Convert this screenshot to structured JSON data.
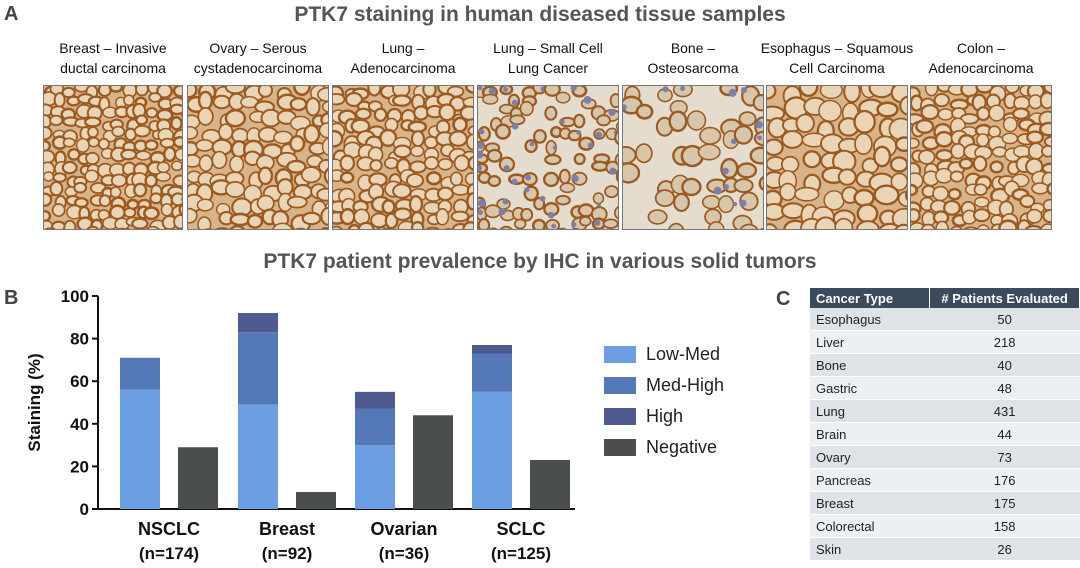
{
  "panel_a": {
    "letter": "A",
    "title": "PTK7 staining in human diseased tissue samples",
    "samples": [
      {
        "line1": "Breast – Invasive",
        "line2": "ductal carcinoma"
      },
      {
        "line1": "Ovary – Serous",
        "line2": "cystadenocarcinoma"
      },
      {
        "line1": "Lung –",
        "line2": "Adenocarcinoma"
      },
      {
        "line1": "Lung – Small Cell",
        "line2": "Lung Cancer"
      },
      {
        "line1": "Bone –",
        "line2": "Osteosarcoma"
      },
      {
        "line1": "Esophagus – Squamous",
        "line2": "Cell Carcinoma"
      },
      {
        "line1": "Colon –",
        "line2": "Adenocarcinoma"
      }
    ]
  },
  "panel_b": {
    "letter": "B",
    "title": "PTK7 patient prevalence by IHC in various solid tumors"
  },
  "panel_c": {
    "letter": "C",
    "headers": [
      "Cancer Type",
      "# Patients Evaluated"
    ],
    "rows": [
      {
        "type": "Esophagus",
        "patients": "50"
      },
      {
        "type": "Liver",
        "patients": "218"
      },
      {
        "type": "Bone",
        "patients": "40"
      },
      {
        "type": "Gastric",
        "patients": "48"
      },
      {
        "type": "Lung",
        "patients": "431"
      },
      {
        "type": "Brain",
        "patients": "44"
      },
      {
        "type": "Ovary",
        "patients": "73"
      },
      {
        "type": "Pancreas",
        "patients": "176"
      },
      {
        "type": "Breast",
        "patients": "175"
      },
      {
        "type": "Colorectal",
        "patients": "158"
      },
      {
        "type": "Skin",
        "patients": "26"
      }
    ]
  },
  "colors": {
    "low_med": "#6b9ee3",
    "med_high": "#5579b8",
    "high": "#4f5a8e",
    "negative": "#4a4f4b",
    "stain_dark": "#9a5a22",
    "stain_light": "#e9d5b6"
  },
  "chart_data": {
    "type": "bar",
    "title": "PTK7 patient prevalence by IHC in various solid tumors",
    "ylabel": "Staining (%)",
    "xlabel": "",
    "ylim": [
      0,
      100
    ],
    "yticks": [
      0,
      20,
      40,
      60,
      80,
      100
    ],
    "categories": [
      {
        "name": "NSCLC",
        "n": "(n=174)"
      },
      {
        "name": "Breast",
        "n": "(n=92)"
      },
      {
        "name": "Ovarian",
        "n": "(n=36)"
      },
      {
        "name": "SCLC",
        "n": "(n=125)"
      }
    ],
    "stacked_series": [
      {
        "name": "Low-Med",
        "values": [
          56,
          49,
          30,
          55
        ]
      },
      {
        "name": "Med-High",
        "values": [
          15,
          34,
          17,
          18
        ]
      },
      {
        "name": "High",
        "values": [
          0,
          9,
          8,
          4
        ]
      }
    ],
    "negative_series": {
      "name": "Negative",
      "values": [
        29,
        8,
        44,
        23
      ]
    },
    "legend": [
      "Low-Med",
      "Med-High",
      "High",
      "Negative"
    ],
    "legend_position": "right"
  }
}
